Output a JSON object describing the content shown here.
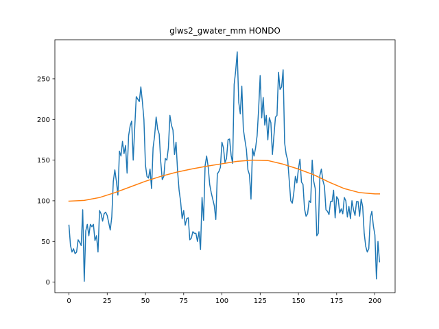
{
  "chart_data": {
    "type": "line",
    "title": "glws2_gwater_mm HONDO",
    "xlabel": "",
    "ylabel": "",
    "xlim": [
      -9.2,
      213.2
    ],
    "ylim": [
      -13,
      298
    ],
    "xticks": [
      0,
      25,
      50,
      75,
      100,
      125,
      150,
      175,
      200
    ],
    "yticks": [
      0,
      50,
      100,
      150,
      200,
      250
    ],
    "grid": false,
    "series": [
      {
        "color": "#1f77b4",
        "x": [
          0,
          1,
          2,
          3,
          4,
          5,
          6,
          7,
          8,
          9,
          10,
          11,
          12,
          13,
          14,
          15,
          16,
          17,
          18,
          19,
          20,
          21,
          22,
          23,
          24,
          25,
          26,
          27,
          28,
          29,
          30,
          31,
          32,
          33,
          34,
          35,
          36,
          37,
          38,
          39,
          40,
          41,
          42,
          43,
          44,
          45,
          46,
          47,
          48,
          49,
          50,
          51,
          52,
          53,
          54,
          55,
          56,
          57,
          58,
          59,
          60,
          61,
          62,
          63,
          64,
          65,
          66,
          67,
          68,
          69,
          70,
          71,
          72,
          73,
          74,
          75,
          76,
          77,
          78,
          79,
          80,
          81,
          82,
          83,
          84,
          85,
          86,
          87,
          88,
          89,
          90,
          91,
          92,
          93,
          94,
          95,
          96,
          97,
          98,
          99,
          100,
          101,
          102,
          103,
          104,
          105,
          106,
          107,
          108,
          109,
          110,
          111,
          112,
          113,
          114,
          115,
          116,
          117,
          118,
          119,
          120,
          121,
          122,
          123,
          124,
          125,
          126,
          127,
          128,
          129,
          130,
          131,
          132,
          133,
          134,
          135,
          136,
          137,
          138,
          139,
          140,
          141,
          142,
          143,
          144,
          145,
          146,
          147,
          148,
          149,
          150,
          151,
          152,
          153,
          154,
          155,
          156,
          157,
          158,
          159,
          160,
          161,
          162,
          163,
          164,
          165,
          166,
          167,
          168,
          169,
          170,
          171,
          172,
          173,
          174,
          175,
          176,
          177,
          178,
          179,
          180,
          181,
          182,
          183,
          184,
          185,
          186,
          187,
          188,
          189,
          190,
          191,
          192,
          193,
          194,
          195,
          196,
          197,
          198,
          199,
          200,
          201,
          202,
          203
        ],
        "values": [
          70,
          45,
          37,
          41,
          35,
          37,
          52,
          49,
          45,
          89,
          1,
          63,
          71,
          57,
          71,
          68,
          71,
          51,
          57,
          37,
          88,
          84,
          75,
          84,
          86,
          82,
          73,
          64,
          80,
          124,
          138,
          124,
          107,
          161,
          155,
          173,
          158,
          168,
          134,
          180,
          192,
          198,
          150,
          190,
          228,
          225,
          222,
          240,
          222,
          200,
          144,
          130,
          128,
          139,
          115,
          165,
          180,
          203,
          188,
          182,
          148,
          126,
          130,
          152,
          150,
          165,
          205,
          193,
          187,
          157,
          172,
          137,
          113,
          99,
          78,
          88,
          70,
          78,
          79,
          52,
          54,
          62,
          60,
          60,
          50,
          62,
          40,
          104,
          76,
          143,
          155,
          142,
          120,
          110,
          102,
          94,
          77,
          133,
          136,
          141,
          172,
          165,
          147,
          152,
          175,
          176,
          156,
          146,
          243,
          260,
          283,
          221,
          207,
          241,
          188,
          175,
          163,
          138,
          132,
          102,
          164,
          155,
          165,
          180,
          213,
          254,
          202,
          227,
          193,
          205,
          175,
          202,
          196,
          157,
          180,
          203,
          205,
          258,
          237,
          240,
          261,
          171,
          157,
          150,
          125,
          100,
          97,
          110,
          130,
          122,
          139,
          151,
          123,
          120,
          90,
          81,
          84,
          100,
          98,
          150,
          124,
          115,
          57,
          60,
          131,
          139,
          125,
          118,
          89,
          87,
          83,
          99,
          99,
          113,
          79,
          105,
          102,
          85,
          90,
          84,
          104,
          100,
          80,
          93,
          78,
          100,
          89,
          82,
          99,
          99,
          81,
          102,
          93,
          60,
          44,
          37,
          41,
          79,
          87,
          69,
          58,
          4,
          50,
          25
        ]
      },
      {
        "color": "#ff7f0e",
        "x": [
          0,
          10,
          20,
          30,
          40,
          50,
          60,
          70,
          80,
          90,
          100,
          110,
          120,
          130,
          140,
          150,
          160,
          170,
          180,
          190,
          200,
          203
        ],
        "values": [
          99.5,
          100.5,
          104,
          110,
          117,
          124,
          130,
          135,
          139,
          142.5,
          145.5,
          148.5,
          150,
          149.5,
          145,
          139,
          132,
          123,
          115,
          110,
          108.5,
          108.5
        ]
      }
    ]
  }
}
